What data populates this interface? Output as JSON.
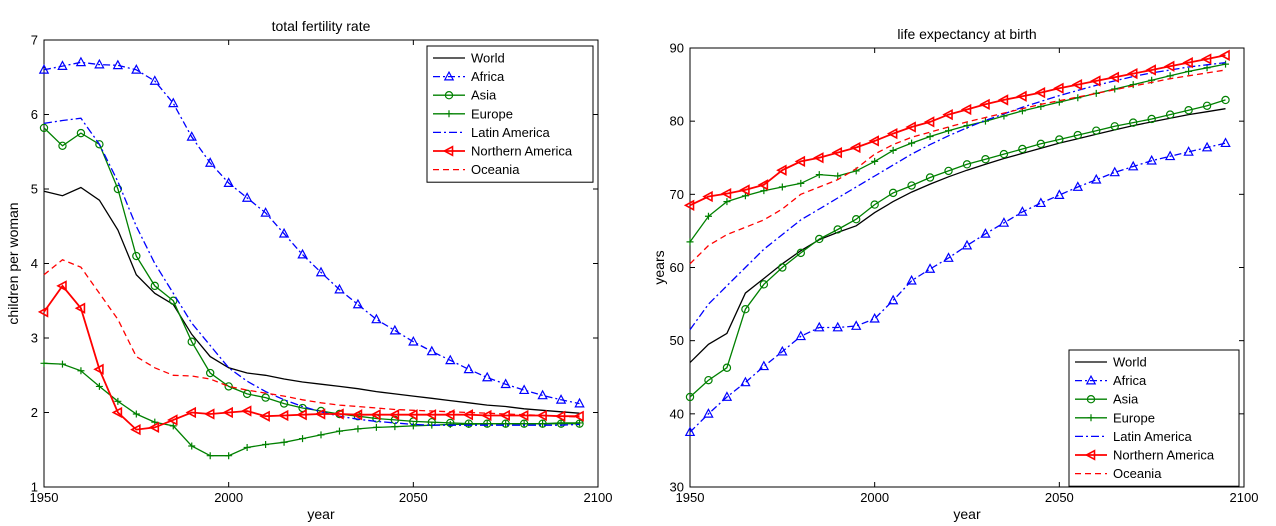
{
  "chart_data": [
    {
      "type": "line",
      "title": "total fertility rate",
      "xlabel": "year",
      "ylabel": "children per woman",
      "xlim": [
        1950,
        2100
      ],
      "ylim": [
        1,
        7
      ],
      "xticks": [
        "1950",
        "2000",
        "2050",
        "2100"
      ],
      "yticks": [
        "1",
        "2",
        "3",
        "4",
        "5",
        "6",
        "7"
      ],
      "legend_position": "top-right",
      "grid": false,
      "x": [
        1950,
        1955,
        1960,
        1965,
        1970,
        1975,
        1980,
        1985,
        1990,
        1995,
        2000,
        2005,
        2010,
        2015,
        2020,
        2025,
        2030,
        2035,
        2040,
        2045,
        2050,
        2055,
        2060,
        2065,
        2070,
        2075,
        2080,
        2085,
        2090,
        2095
      ],
      "series": [
        {
          "name": "World",
          "color": "#000000",
          "dash": "",
          "marker": "none",
          "values": [
            4.97,
            4.91,
            5.02,
            4.85,
            4.45,
            3.85,
            3.6,
            3.45,
            3.05,
            2.75,
            2.6,
            2.53,
            2.5,
            2.45,
            2.41,
            2.38,
            2.35,
            2.32,
            2.28,
            2.25,
            2.22,
            2.19,
            2.16,
            2.13,
            2.1,
            2.08,
            2.05,
            2.03,
            2.01,
            1.99
          ]
        },
        {
          "name": "Africa",
          "color": "#0000ff",
          "dash": "7,3,2,3",
          "marker": "triangle",
          "values": [
            6.6,
            6.65,
            6.7,
            6.67,
            6.66,
            6.6,
            6.45,
            6.15,
            5.7,
            5.35,
            5.08,
            4.88,
            4.68,
            4.4,
            4.12,
            3.88,
            3.65,
            3.45,
            3.25,
            3.1,
            2.95,
            2.82,
            2.7,
            2.58,
            2.47,
            2.38,
            2.3,
            2.23,
            2.17,
            2.12
          ]
        },
        {
          "name": "Asia",
          "color": "#008000",
          "dash": "",
          "marker": "circle",
          "values": [
            5.82,
            5.58,
            5.75,
            5.6,
            5.0,
            4.1,
            3.7,
            3.5,
            2.95,
            2.53,
            2.35,
            2.25,
            2.2,
            2.12,
            2.06,
            2.02,
            1.98,
            1.95,
            1.92,
            1.9,
            1.88,
            1.87,
            1.86,
            1.85,
            1.85,
            1.85,
            1.85,
            1.85,
            1.85,
            1.85
          ]
        },
        {
          "name": "Europe",
          "color": "#008000",
          "dash": "",
          "marker": "plus",
          "values": [
            2.66,
            2.65,
            2.56,
            2.35,
            2.15,
            1.98,
            1.87,
            1.82,
            1.55,
            1.42,
            1.42,
            1.53,
            1.57,
            1.6,
            1.65,
            1.7,
            1.75,
            1.78,
            1.8,
            1.81,
            1.82,
            1.83,
            1.84,
            1.84,
            1.85,
            1.85,
            1.85,
            1.85,
            1.86,
            1.86
          ]
        },
        {
          "name": "Latin America",
          "color": "#0000ff",
          "dash": "8,3,2,3",
          "marker": "none",
          "values": [
            5.88,
            5.92,
            5.95,
            5.6,
            5.1,
            4.5,
            4.0,
            3.6,
            3.2,
            2.9,
            2.6,
            2.42,
            2.28,
            2.17,
            2.08,
            2.01,
            1.95,
            1.91,
            1.88,
            1.86,
            1.84,
            1.83,
            1.83,
            1.83,
            1.83,
            1.83,
            1.83,
            1.83,
            1.83,
            1.84
          ]
        },
        {
          "name": "Northern America",
          "color": "#ff0000",
          "dash": "",
          "marker": "triangle-left",
          "values": [
            3.35,
            3.7,
            3.4,
            2.58,
            2.0,
            1.77,
            1.8,
            1.9,
            2.0,
            1.98,
            2.0,
            2.02,
            1.95,
            1.96,
            1.97,
            1.98,
            1.98,
            1.97,
            1.97,
            1.97,
            1.97,
            1.97,
            1.97,
            1.97,
            1.96,
            1.96,
            1.96,
            1.96,
            1.95,
            1.95
          ]
        },
        {
          "name": "Oceania",
          "color": "#ff0000",
          "dash": "6,4",
          "marker": "none",
          "values": [
            3.85,
            4.05,
            3.95,
            3.6,
            3.25,
            2.75,
            2.6,
            2.5,
            2.49,
            2.45,
            2.35,
            2.3,
            2.26,
            2.22,
            2.17,
            2.13,
            2.1,
            2.08,
            2.06,
            2.04,
            2.03,
            2.02,
            2.01,
            2.0,
            1.99,
            1.98,
            1.97,
            1.96,
            1.95,
            1.94
          ]
        }
      ]
    },
    {
      "type": "line",
      "title": "life expectancy at birth",
      "xlabel": "year",
      "ylabel": "years",
      "xlim": [
        1950,
        2100
      ],
      "ylim": [
        30,
        90
      ],
      "xticks": [
        "1950",
        "2000",
        "2050",
        "2100"
      ],
      "yticks": [
        "30",
        "40",
        "50",
        "60",
        "70",
        "80",
        "90"
      ],
      "legend_position": "bottom-right",
      "grid": false,
      "x": [
        1950,
        1955,
        1960,
        1965,
        1970,
        1975,
        1980,
        1985,
        1990,
        1995,
        2000,
        2005,
        2010,
        2015,
        2020,
        2025,
        2030,
        2035,
        2040,
        2045,
        2050,
        2055,
        2060,
        2065,
        2070,
        2075,
        2080,
        2085,
        2090,
        2095
      ],
      "series": [
        {
          "name": "World",
          "color": "#000000",
          "dash": "",
          "marker": "none",
          "values": [
            47.0,
            49.5,
            51.0,
            56.5,
            58.5,
            60.5,
            62.3,
            63.8,
            64.8,
            65.7,
            67.5,
            69.0,
            70.3,
            71.4,
            72.4,
            73.3,
            74.1,
            74.9,
            75.6,
            76.3,
            77.0,
            77.6,
            78.2,
            78.8,
            79.4,
            79.9,
            80.4,
            80.9,
            81.3,
            81.7
          ]
        },
        {
          "name": "Africa",
          "color": "#0000ff",
          "dash": "7,3,2,3",
          "marker": "triangle",
          "values": [
            37.5,
            40.0,
            42.3,
            44.3,
            46.5,
            48.5,
            50.6,
            51.8,
            51.8,
            52.0,
            53.0,
            55.5,
            58.2,
            59.8,
            61.3,
            63.0,
            64.6,
            66.1,
            67.6,
            68.8,
            69.9,
            71.0,
            72.0,
            73.0,
            73.8,
            74.6,
            75.2,
            75.8,
            76.4,
            77.0
          ]
        },
        {
          "name": "Asia",
          "color": "#008000",
          "dash": "",
          "marker": "circle",
          "values": [
            42.3,
            44.6,
            46.3,
            54.3,
            57.7,
            60.0,
            62.0,
            63.9,
            65.2,
            66.6,
            68.6,
            70.2,
            71.2,
            72.3,
            73.2,
            74.1,
            74.8,
            75.5,
            76.2,
            76.9,
            77.5,
            78.1,
            78.7,
            79.3,
            79.8,
            80.3,
            80.9,
            81.5,
            82.1,
            82.9
          ]
        },
        {
          "name": "Europe",
          "color": "#008000",
          "dash": "",
          "marker": "plus",
          "values": [
            63.5,
            67.0,
            69.0,
            69.8,
            70.5,
            71.0,
            71.5,
            72.7,
            72.5,
            73.2,
            74.5,
            76.0,
            77.0,
            77.9,
            78.7,
            79.4,
            80.0,
            80.7,
            81.4,
            82.0,
            82.6,
            83.2,
            83.8,
            84.4,
            85.0,
            85.6,
            86.2,
            86.8,
            87.3,
            87.8
          ]
        },
        {
          "name": "Latin America",
          "color": "#0000ff",
          "dash": "8,3,2,3",
          "marker": "none",
          "values": [
            51.5,
            55.0,
            57.5,
            60.0,
            62.5,
            64.5,
            66.5,
            68.0,
            69.5,
            71.0,
            72.5,
            74.0,
            75.5,
            76.8,
            78.0,
            79.1,
            80.1,
            81.0,
            81.9,
            82.7,
            83.5,
            84.2,
            84.9,
            85.5,
            86.1,
            86.6,
            87.0,
            87.4,
            87.7,
            88.0
          ]
        },
        {
          "name": "Northern America",
          "color": "#ff0000",
          "dash": "",
          "marker": "triangle-left",
          "values": [
            68.5,
            69.7,
            70.1,
            70.6,
            71.3,
            73.3,
            74.5,
            75.0,
            75.7,
            76.4,
            77.3,
            78.3,
            79.2,
            79.9,
            80.9,
            81.6,
            82.3,
            82.9,
            83.4,
            83.9,
            84.5,
            85.0,
            85.5,
            86.0,
            86.5,
            87.0,
            87.5,
            88.0,
            88.5,
            89.0
          ]
        },
        {
          "name": "Oceania",
          "color": "#ff0000",
          "dash": "6,4",
          "marker": "none",
          "values": [
            60.5,
            63.0,
            64.5,
            65.5,
            66.5,
            68.0,
            70.0,
            71.0,
            72.0,
            73.5,
            75.5,
            76.8,
            77.8,
            78.5,
            79.2,
            79.9,
            80.5,
            81.1,
            81.7,
            82.3,
            82.8,
            83.3,
            83.8,
            84.3,
            84.8,
            85.3,
            85.8,
            86.2,
            86.6,
            87.0
          ]
        }
      ]
    }
  ]
}
